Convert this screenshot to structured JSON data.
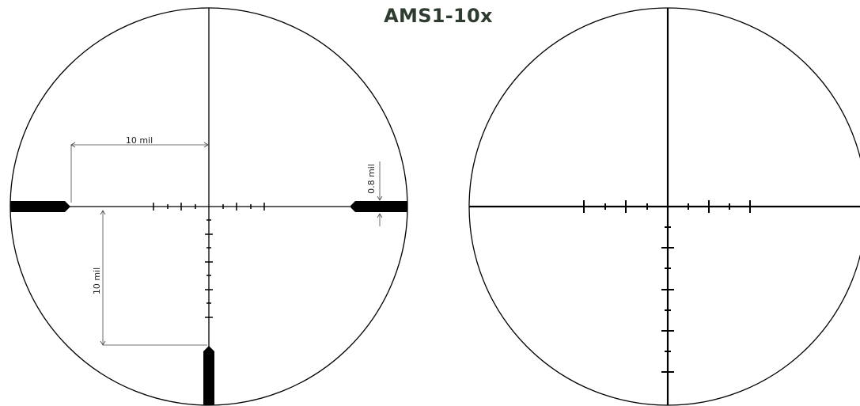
{
  "title": "AMS1-10x",
  "colors": {
    "title": "#2e3b2f",
    "reticle": "#000000",
    "dimension": "#444444"
  },
  "annotations": {
    "horizontal_span": "10 mil",
    "vertical_span": "10 mil",
    "post_thickness": "0.8 mil"
  }
}
